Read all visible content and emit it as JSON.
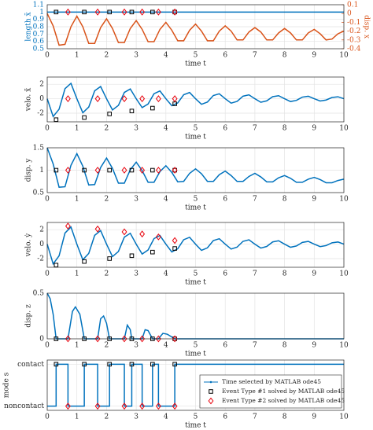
{
  "chart_data": [
    {
      "type": "line",
      "xlabel": "time t",
      "ylabel": "length x̄",
      "y2label": "disp. x",
      "xlim": [
        0,
        10
      ],
      "xticks": [
        0,
        1,
        2,
        3,
        4,
        5,
        6,
        7,
        8,
        9,
        10
      ],
      "ylim": [
        0.5,
        1.1
      ],
      "yticks": [
        0.5,
        0.6,
        0.7,
        0.8,
        0.9,
        1,
        1.1
      ],
      "y2lim": [
        -0.4,
        0.1
      ],
      "y2ticks": [
        0.1,
        0,
        -0.1,
        -0.2,
        -0.3,
        -0.4
      ],
      "grid": true,
      "series": [
        {
          "color": "#0072bd",
          "x": [
            0,
            10
          ],
          "values": [
            1,
            1
          ]
        },
        {
          "color": "#d95319",
          "axis": "y2",
          "x": [
            0,
            0.2,
            0.4,
            0.6,
            0.8,
            1,
            1.2,
            1.4,
            1.6,
            1.8,
            2,
            2.2,
            2.4,
            2.6,
            2.8,
            3,
            3.2,
            3.4,
            3.6,
            3.8,
            4,
            4.2,
            4.4,
            4.6,
            4.8,
            5,
            5.2,
            5.4,
            5.6,
            5.8,
            6,
            6.2,
            6.4,
            6.6,
            6.8,
            7,
            7.2,
            7.4,
            7.6,
            7.8,
            8,
            8.2,
            8.4,
            8.6,
            8.8,
            9,
            9.2,
            9.4,
            9.6,
            9.8,
            10
          ],
          "values": [
            0,
            -0.14,
            -0.36,
            -0.35,
            -0.15,
            -0.03,
            -0.15,
            -0.34,
            -0.34,
            -0.16,
            -0.06,
            -0.17,
            -0.33,
            -0.33,
            -0.17,
            -0.08,
            -0.18,
            -0.32,
            -0.32,
            -0.18,
            -0.1,
            -0.19,
            -0.31,
            -0.31,
            -0.19,
            -0.12,
            -0.2,
            -0.31,
            -0.31,
            -0.2,
            -0.14,
            -0.2,
            -0.3,
            -0.3,
            -0.21,
            -0.16,
            -0.21,
            -0.3,
            -0.3,
            -0.22,
            -0.17,
            -0.22,
            -0.3,
            -0.3,
            -0.22,
            -0.18,
            -0.23,
            -0.3,
            -0.29,
            -0.23,
            -0.2
          ]
        },
        {
          "color": "#000000",
          "marker": "square",
          "x": [
            0.3,
            1.25,
            2.1,
            2.85,
            3.55,
            4.3
          ],
          "values": [
            1,
            1,
            1,
            1,
            1,
            1
          ]
        },
        {
          "color": "#e8000b",
          "marker": "diamond",
          "x": [
            0.7,
            1.7,
            2.6,
            3.2,
            3.75,
            4.3
          ],
          "values": [
            1,
            1,
            1,
            1,
            1,
            1
          ]
        }
      ]
    },
    {
      "type": "line",
      "xlabel": "time t",
      "ylabel": "velo. ẋ̄",
      "xlim": [
        0,
        10
      ],
      "xticks": [
        0,
        1,
        2,
        3,
        4,
        5,
        6,
        7,
        8,
        9,
        10
      ],
      "ylim": [
        -3.2,
        3
      ],
      "yticks": [
        -2,
        0,
        2
      ],
      "grid": true,
      "series": [
        {
          "color": "#0072bd",
          "x": [
            0,
            0.2,
            0.4,
            0.6,
            0.8,
            1,
            1.2,
            1.4,
            1.6,
            1.8,
            2,
            2.2,
            2.4,
            2.6,
            2.8,
            3,
            3.2,
            3.4,
            3.6,
            3.8,
            4,
            4.2,
            4.4,
            4.6,
            4.8,
            5,
            5.2,
            5.4,
            5.6,
            5.8,
            6,
            6.2,
            6.4,
            6.6,
            6.8,
            7,
            7.2,
            7.4,
            7.6,
            7.8,
            8,
            8.2,
            8.4,
            8.6,
            8.8,
            9,
            9.2,
            9.4,
            9.6,
            9.8,
            10
          ],
          "values": [
            0,
            -2.46,
            -1.45,
            1.39,
            2.13,
            0,
            -1.94,
            -1.15,
            1.1,
            1.69,
            0,
            -1.55,
            -0.92,
            0.87,
            1.35,
            0,
            -1.23,
            -0.73,
            0.69,
            1.07,
            0,
            -0.97,
            -0.58,
            0.55,
            0.86,
            0,
            -0.77,
            -0.46,
            0.44,
            0.68,
            0,
            -0.61,
            -0.37,
            0.35,
            0.54,
            0,
            -0.49,
            -0.29,
            0.28,
            0.42,
            0,
            -0.39,
            -0.23,
            0.22,
            0.34,
            0,
            -0.31,
            -0.18,
            0.17,
            0.27,
            0
          ]
        },
        {
          "color": "#000000",
          "marker": "square",
          "x": [
            0.3,
            1.25,
            2.1,
            2.85,
            3.55,
            4.3
          ],
          "values": [
            -2.9,
            -2.6,
            -2.1,
            -1.7,
            -1.3,
            -0.7
          ]
        },
        {
          "color": "#e8000b",
          "marker": "diamond",
          "x": [
            0.7,
            1.7,
            2.6,
            3.2,
            3.75,
            4.3
          ],
          "values": [
            0,
            0,
            0,
            0,
            0,
            0
          ]
        }
      ]
    },
    {
      "type": "line",
      "xlabel": "time t",
      "ylabel": "disp. y",
      "xlim": [
        0,
        10
      ],
      "xticks": [
        0,
        1,
        2,
        3,
        4,
        5,
        6,
        7,
        8,
        9,
        10
      ],
      "ylim": [
        0.5,
        1.5
      ],
      "yticks": [
        0.5,
        1,
        1.5
      ],
      "grid": true,
      "series": [
        {
          "color": "#0072bd",
          "x": [
            0,
            0.2,
            0.4,
            0.6,
            0.8,
            1,
            1.2,
            1.4,
            1.6,
            1.8,
            2,
            2.2,
            2.4,
            2.6,
            2.8,
            3,
            3.2,
            3.4,
            3.6,
            3.8,
            4,
            4.2,
            4.4,
            4.6,
            4.8,
            5,
            5.2,
            5.4,
            5.6,
            5.8,
            6,
            6.2,
            6.4,
            6.6,
            6.8,
            7,
            7.2,
            7.4,
            7.6,
            7.8,
            8,
            8.2,
            8.4,
            8.6,
            8.8,
            9,
            9.2,
            9.4,
            9.6,
            9.8,
            10
          ],
          "values": [
            1.5,
            1.14,
            0.62,
            0.63,
            1.11,
            1.37,
            1.09,
            0.67,
            0.68,
            1.06,
            1.27,
            1.04,
            0.71,
            0.71,
            1.01,
            1.18,
            0.99,
            0.73,
            0.73,
            0.97,
            1.1,
            0.95,
            0.74,
            0.75,
            0.93,
            1.03,
            0.92,
            0.75,
            0.75,
            0.9,
            0.98,
            0.88,
            0.75,
            0.75,
            0.86,
            0.93,
            0.85,
            0.74,
            0.74,
            0.83,
            0.88,
            0.82,
            0.73,
            0.73,
            0.8,
            0.84,
            0.79,
            0.72,
            0.72,
            0.77,
            0.8
          ]
        },
        {
          "color": "#000000",
          "marker": "square",
          "x": [
            0.3,
            1.25,
            2.1,
            2.85,
            3.55,
            4.3
          ],
          "values": [
            1,
            1,
            1,
            1,
            1,
            1
          ]
        },
        {
          "color": "#e8000b",
          "marker": "diamond",
          "x": [
            0.7,
            1.7,
            2.6,
            3.2,
            3.75,
            4.3
          ],
          "values": [
            1,
            1,
            1,
            1,
            1,
            1
          ]
        }
      ]
    },
    {
      "type": "line",
      "xlabel": "time t",
      "ylabel": "velo. ẏ",
      "xlim": [
        0,
        10
      ],
      "xticks": [
        0,
        1,
        2,
        3,
        4,
        5,
        6,
        7,
        8,
        9,
        10
      ],
      "ylim": [
        -3.2,
        3
      ],
      "yticks": [
        -2,
        0,
        2
      ],
      "grid": true,
      "series": [
        {
          "color": "#0072bd",
          "x": [
            0,
            0.2,
            0.4,
            0.6,
            0.8,
            1,
            1.2,
            1.4,
            1.6,
            1.8,
            2,
            2.2,
            2.4,
            2.6,
            2.8,
            3,
            3.2,
            3.4,
            3.6,
            3.8,
            4,
            4.2,
            4.4,
            4.6,
            4.8,
            5,
            5.2,
            5.4,
            5.6,
            5.8,
            6,
            6.2,
            6.4,
            6.6,
            6.8,
            7,
            7.2,
            7.4,
            7.6,
            7.8,
            8,
            8.2,
            8.4,
            8.6,
            8.8,
            9,
            9.2,
            9.4,
            9.6,
            9.8,
            10
          ],
          "values": [
            0,
            -2.73,
            -1.61,
            1.54,
            2.37,
            0,
            -2.16,
            -1.28,
            1.22,
            1.88,
            0,
            -1.72,
            -1.02,
            0.97,
            1.5,
            0,
            -1.37,
            -0.81,
            0.77,
            1.19,
            0,
            -1.08,
            -0.64,
            0.61,
            0.95,
            0,
            -0.86,
            -0.51,
            0.49,
            0.75,
            0,
            -0.68,
            -0.41,
            0.39,
            0.6,
            0,
            -0.54,
            -0.32,
            0.31,
            0.47,
            0,
            -0.43,
            -0.25,
            0.24,
            0.38,
            0,
            -0.34,
            -0.2,
            0.19,
            0.3,
            0
          ]
        },
        {
          "color": "#000000",
          "marker": "square",
          "x": [
            0.3,
            1.25,
            2.1,
            2.85,
            3.55,
            4.3
          ],
          "values": [
            -2.9,
            -2.4,
            -2,
            -1.6,
            -1.1,
            -0.6
          ]
        },
        {
          "color": "#e8000b",
          "marker": "diamond",
          "x": [
            0.7,
            1.7,
            2.6,
            3.2,
            3.75,
            4.3
          ],
          "values": [
            2.5,
            2.1,
            1.7,
            1.4,
            1,
            0.5
          ]
        }
      ]
    },
    {
      "type": "line",
      "xlabel": "time t",
      "ylabel": "disp. z",
      "xlim": [
        0,
        10
      ],
      "xticks": [
        0,
        1,
        2,
        3,
        4,
        5,
        6,
        7,
        8,
        9,
        10
      ],
      "ylim": [
        0,
        0.5
      ],
      "yticks": [
        0,
        0.5
      ],
      "grid": true,
      "series": [
        {
          "color": "#0072bd",
          "x": [
            0,
            0.1,
            0.2,
            0.3,
            0.7,
            0.85,
            0.95,
            1.1,
            1.25,
            1.7,
            1.8,
            1.9,
            2,
            2.1,
            2.6,
            2.7,
            2.8,
            2.85,
            3.2,
            3.3,
            3.4,
            3.55,
            3.75,
            3.9,
            4.05,
            4.3,
            10
          ],
          "values": [
            0.5,
            0.44,
            0.27,
            0,
            0,
            0.3,
            0.35,
            0.27,
            0,
            0,
            0.22,
            0.25,
            0.17,
            0,
            0,
            0.15,
            0.1,
            0,
            0,
            0.1,
            0.09,
            0,
            0,
            0.06,
            0.05,
            0,
            0
          ]
        },
        {
          "color": "#000000",
          "marker": "square",
          "x": [
            0.3,
            1.25,
            2.1,
            2.85,
            3.55,
            4.3
          ],
          "values": [
            0,
            0,
            0,
            0,
            0,
            0
          ]
        },
        {
          "color": "#e8000b",
          "marker": "diamond",
          "x": [
            0.7,
            1.7,
            2.6,
            3.2,
            3.75,
            4.3
          ],
          "values": [
            0,
            0,
            0,
            0,
            0,
            0
          ]
        }
      ]
    },
    {
      "type": "line",
      "xlabel": "time t",
      "ylabel": "mode s",
      "xlim": [
        0,
        10
      ],
      "xticks": [
        0,
        1,
        2,
        3,
        4,
        5,
        6,
        7,
        8,
        9,
        10
      ],
      "ylim": [
        -0.1,
        1.1
      ],
      "yticks": [
        {
          "value": 0,
          "label": "noncontact"
        },
        {
          "value": 1,
          "label": "contact"
        }
      ],
      "grid": true,
      "legend": "lower right",
      "series": [
        {
          "name": "Time selected by MATLAB ode45",
          "color": "#0072bd",
          "x": [
            0,
            0.3,
            0.3,
            0.7,
            0.7,
            1.25,
            1.25,
            1.7,
            1.7,
            2.1,
            2.1,
            2.6,
            2.6,
            2.85,
            2.85,
            3.2,
            3.2,
            3.55,
            3.55,
            3.75,
            3.75,
            4.3,
            4.3,
            10
          ],
          "values": [
            0,
            0,
            1,
            1,
            0,
            0,
            1,
            1,
            0,
            0,
            1,
            1,
            0,
            0,
            1,
            1,
            0,
            0,
            1,
            1,
            0,
            0,
            1,
            1
          ]
        },
        {
          "name": "Event Type #1 solved by MATLAB ode45",
          "color": "#000000",
          "marker": "square",
          "x": [
            0.3,
            1.25,
            2.1,
            2.85,
            3.55,
            4.3
          ],
          "values": [
            1,
            1,
            1,
            1,
            1,
            1
          ]
        },
        {
          "name": "Event Type #2 solved by MATLAB ode45",
          "color": "#e8000b",
          "marker": "diamond",
          "x": [
            0.7,
            1.7,
            2.6,
            3.2,
            3.75,
            4.3
          ],
          "values": [
            0,
            0,
            0,
            0,
            0,
            0
          ]
        }
      ]
    }
  ]
}
